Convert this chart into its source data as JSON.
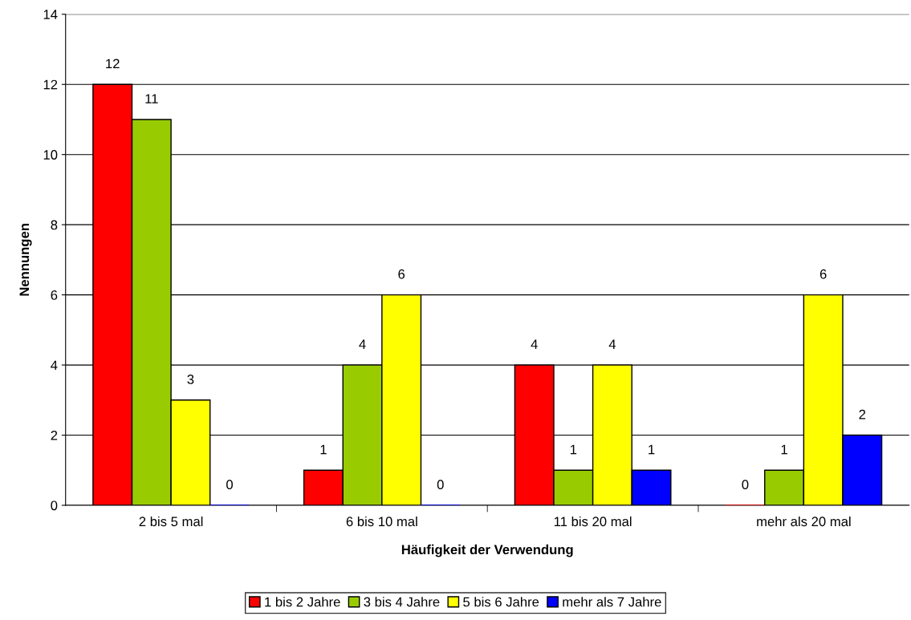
{
  "chart_data": {
    "type": "bar",
    "xlabel": "Häufigkeit der Verwendung",
    "ylabel": "Nennungen",
    "categories": [
      "2 bis 5 mal",
      "6 bis 10 mal",
      "11 bis 20 mal",
      "mehr als 20 mal"
    ],
    "series": [
      {
        "name": "1 bis 2 Jahre",
        "color": "#ff0000",
        "values": [
          12,
          1,
          4,
          0
        ]
      },
      {
        "name": "3 bis 4 Jahre",
        "color": "#99cc00",
        "values": [
          11,
          4,
          1,
          1
        ]
      },
      {
        "name": "5 bis 6 Jahre",
        "color": "#ffff00",
        "values": [
          3,
          6,
          4,
          6
        ]
      },
      {
        "name": "mehr als 7 Jahre",
        "color": "#0000ff",
        "values": [
          0,
          0,
          1,
          2
        ]
      }
    ],
    "ylim": [
      0,
      14
    ],
    "yticks": [
      0,
      2,
      4,
      6,
      8,
      10,
      12,
      14
    ],
    "grid": "y",
    "legend": "bottom",
    "data_labels": true
  }
}
